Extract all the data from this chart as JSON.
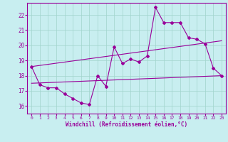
{
  "xlabel": "Windchill (Refroidissement éolien,°C)",
  "ylabel": "",
  "xlim": [
    -0.5,
    23.5
  ],
  "ylim": [
    15.5,
    22.8
  ],
  "yticks": [
    16,
    17,
    18,
    19,
    20,
    21,
    22
  ],
  "xticks": [
    0,
    1,
    2,
    3,
    4,
    5,
    6,
    7,
    8,
    9,
    10,
    11,
    12,
    13,
    14,
    15,
    16,
    17,
    18,
    19,
    20,
    21,
    22,
    23
  ],
  "bg_color": "#c8eef0",
  "line_color": "#990099",
  "grid_color": "#a0d4cc",
  "line1": [
    18.6,
    17.4,
    17.2,
    17.2,
    16.8,
    16.5,
    16.2,
    16.1,
    18.0,
    17.3,
    19.9,
    18.8,
    19.1,
    18.9,
    19.3,
    22.5,
    21.5,
    21.5,
    21.5,
    20.5,
    20.4,
    20.1,
    18.5,
    18.0
  ],
  "line2_x": [
    0,
    23
  ],
  "line2_y": [
    17.5,
    18.0
  ],
  "line3_x": [
    0,
    23
  ],
  "line3_y": [
    18.6,
    20.3
  ]
}
